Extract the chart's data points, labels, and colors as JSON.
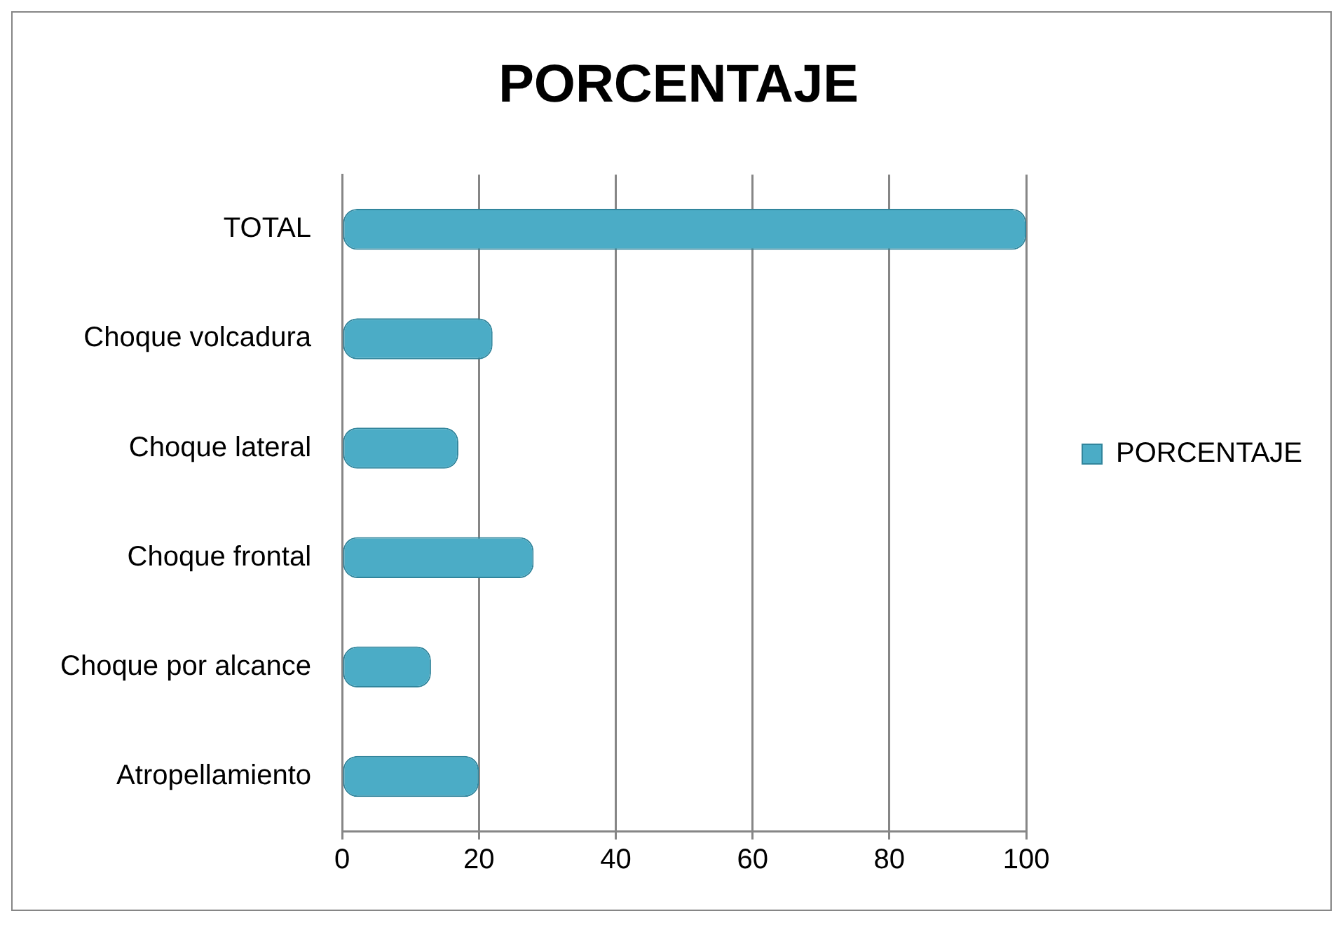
{
  "chart_data": {
    "type": "bar",
    "orientation": "horizontal",
    "title": "PORCENTAJE",
    "categories": [
      "TOTAL",
      "Choque volcadura",
      "Choque lateral",
      "Choque frontal",
      "Choque por alcance",
      "Atropellamiento"
    ],
    "series": [
      {
        "name": "PORCENTAJE",
        "color": "#4bacc6",
        "values": [
          100,
          22,
          17,
          28,
          13,
          20
        ]
      }
    ],
    "xlim": [
      0,
      100
    ],
    "xticks": [
      0,
      20,
      40,
      60,
      80,
      100
    ],
    "grid": "x",
    "legend": "right"
  }
}
